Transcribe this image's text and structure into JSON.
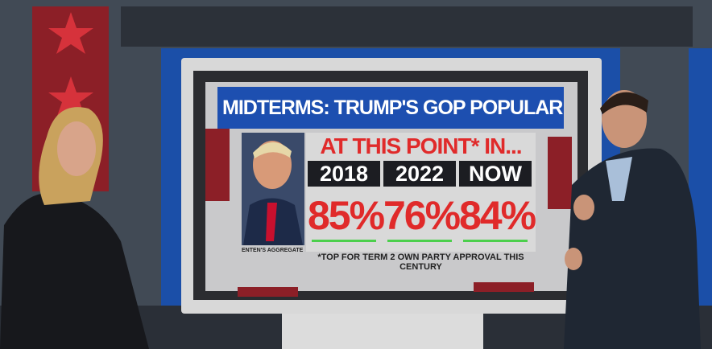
{
  "graphic": {
    "title": "MIDTERMS: TRUMP'S GOP POPULARITY RATING...",
    "subtitle": "AT THIS POINT* IN...",
    "columns": [
      {
        "period": "2018",
        "rating": "85%"
      },
      {
        "period": "2022",
        "rating": "76%"
      },
      {
        "period": "NOW",
        "rating": "84%"
      }
    ],
    "source": "ENTEN'S AGGREGATE",
    "footnote": "*TOP FOR TERM 2 OWN PARTY APPROVAL THIS CENTURY"
  }
}
